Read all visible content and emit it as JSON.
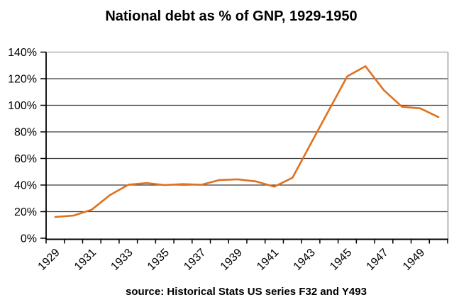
{
  "chart": {
    "title": "National debt as % of GNP, 1929-1950",
    "source_note": "source: Historical Stats US  series F32 and Y493"
  },
  "chart_data": {
    "type": "line",
    "title": "National debt as % of GNP, 1929-1950",
    "series_name": "National debt as % of GNP",
    "x": [
      1929,
      1930,
      1931,
      1932,
      1933,
      1934,
      1935,
      1936,
      1937,
      1938,
      1939,
      1940,
      1941,
      1942,
      1943,
      1944,
      1945,
      1946,
      1947,
      1948,
      1949,
      1950
    ],
    "values": [
      16.0,
      17.0,
      21.5,
      32.5,
      40.2,
      41.5,
      40.0,
      40.7,
      40.2,
      43.8,
      44.3,
      42.7,
      38.8,
      45.5,
      71.0,
      96.5,
      121.7,
      129.4,
      111.4,
      98.9,
      97.7,
      91.1
    ],
    "ylim": [
      0,
      140
    ],
    "ytick_step": 20,
    "ytick_labels": [
      "0%",
      "20%",
      "40%",
      "60%",
      "80%",
      "100%",
      "120%",
      "140%"
    ],
    "xtick_labels_shown": [
      "1929",
      "1931",
      "1933",
      "1935",
      "1937",
      "1939",
      "1941",
      "1943",
      "1945",
      "1947",
      "1949"
    ],
    "grid": "horizontal",
    "legend": "none",
    "xlabel": "",
    "ylabel": "",
    "source": "source: Historical Stats US  series F32 and Y493",
    "colors": {
      "line": "#E0711F",
      "gridline": "#3c3c3c",
      "axis": "#000000",
      "plot_border_top": "#b3b3b3",
      "plot_border_right": "#9a9a9a",
      "text": "#000000",
      "background": "#ffffff"
    }
  }
}
